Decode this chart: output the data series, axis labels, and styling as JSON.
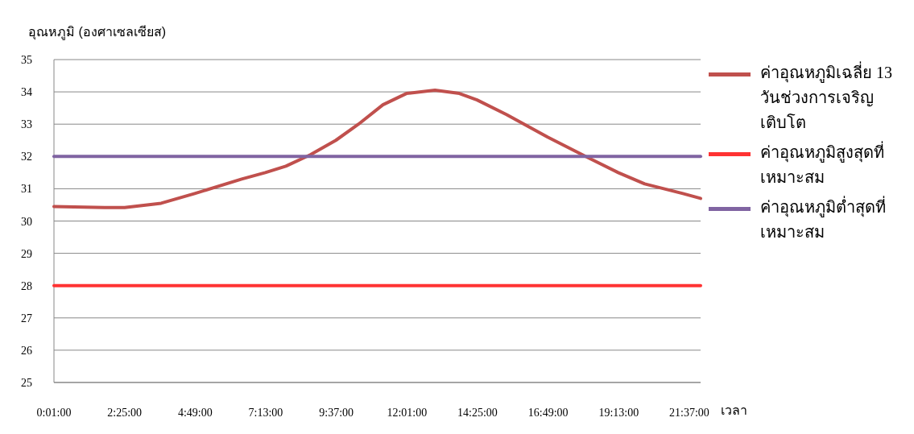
{
  "chart_data": {
    "type": "line",
    "ylabel": "อุณหภูมิ (องศาเซลเซียส)",
    "xlabel": "เวลา",
    "xlim": [
      0.0167,
      22.0
    ],
    "xticks": [
      {
        "value": 0.0167,
        "label": "0:01:00"
      },
      {
        "value": 2.4167,
        "label": "2:25:00"
      },
      {
        "value": 4.8167,
        "label": "4:49:00"
      },
      {
        "value": 7.2167,
        "label": "7:13:00"
      },
      {
        "value": 9.6167,
        "label": "9:37:00"
      },
      {
        "value": 12.0167,
        "label": "12:01:00"
      },
      {
        "value": 14.4167,
        "label": "14:25:00"
      },
      {
        "value": 16.8167,
        "label": "16:49:00"
      },
      {
        "value": 19.2167,
        "label": "19:13:00"
      },
      {
        "value": 21.6167,
        "label": "21:37:00"
      }
    ],
    "ylim": [
      25,
      35
    ],
    "yticks": [
      25,
      26,
      27,
      28,
      29,
      30,
      31,
      32,
      33,
      34,
      35
    ],
    "grid": "y",
    "legend": "right",
    "line_style": "solid",
    "series": [
      {
        "name": "ค่าอุณหภูมิเฉลี่ย 13 วันช่วงการเจริญเติบโต",
        "color": "#c0504d",
        "x": [
          0.0167,
          1.74,
          2.42,
          3.66,
          4.8,
          6.4,
          7.2,
          7.9,
          8.73,
          9.6,
          10.37,
          11.2,
          12.0,
          12.97,
          13.8,
          14.4,
          15.4,
          16.8,
          18.2,
          19.2,
          20.1,
          21.4,
          22.0
        ],
        "values": [
          30.45,
          30.42,
          30.42,
          30.55,
          30.85,
          31.3,
          31.5,
          31.7,
          32.05,
          32.5,
          33.0,
          33.6,
          33.95,
          34.05,
          33.95,
          33.75,
          33.3,
          32.6,
          31.95,
          31.5,
          31.15,
          30.85,
          30.7
        ]
      },
      {
        "name": "ค่าอุณหภูมิสูงสุดที่เหมาะสม",
        "color": "#ff3333",
        "x": [
          0.0167,
          22.0
        ],
        "values": [
          28,
          28
        ]
      },
      {
        "name": "ค่าอุณหภูมิต่ำสุดที่เหมาะสม",
        "color": "#8064a2",
        "x": [
          0.0167,
          22.0
        ],
        "values": [
          32,
          32
        ]
      }
    ]
  }
}
